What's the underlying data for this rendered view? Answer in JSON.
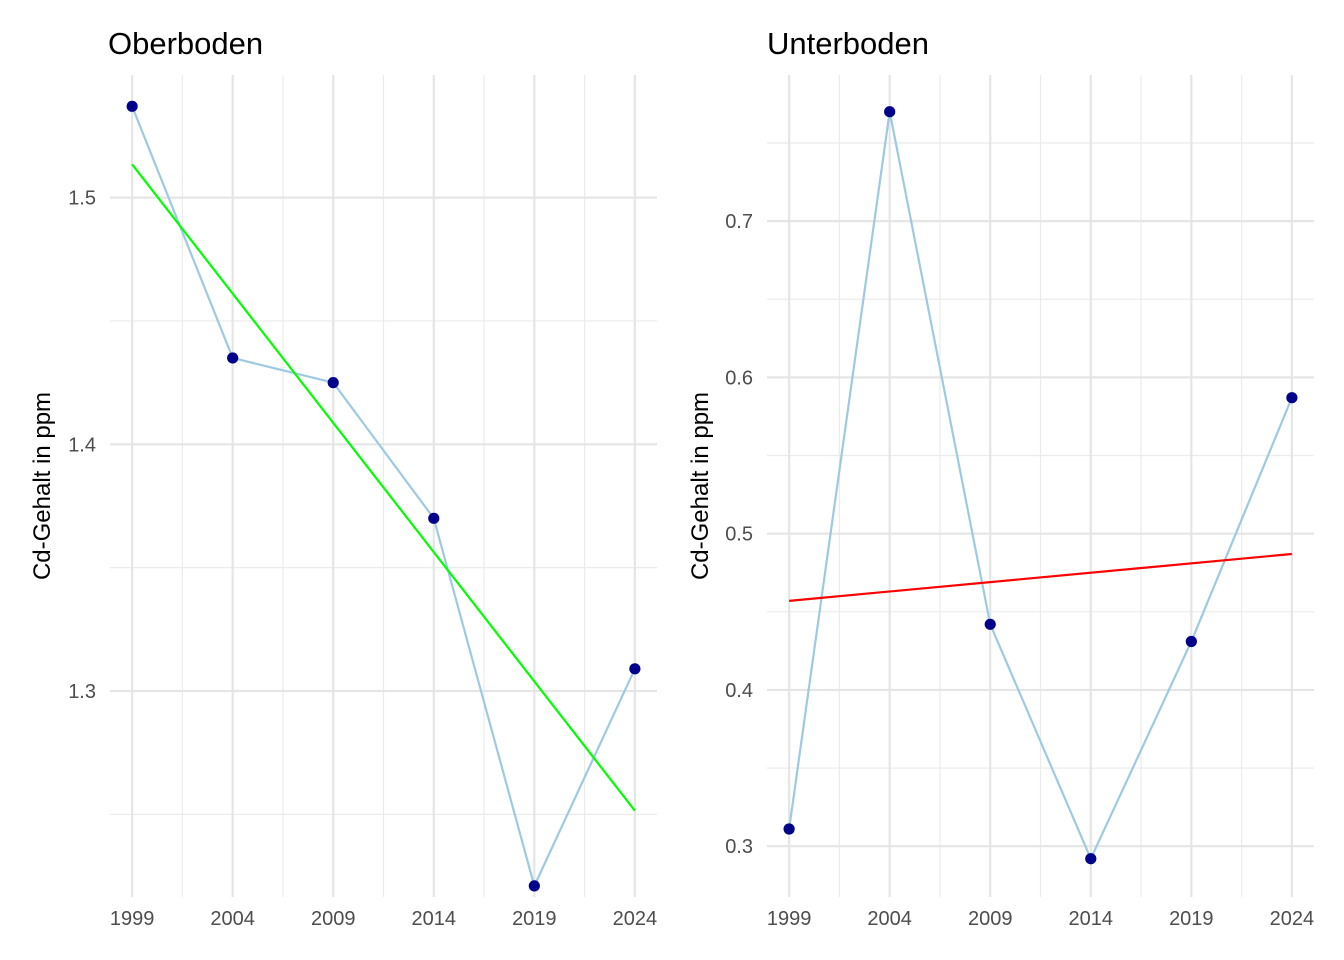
{
  "chart_data": [
    {
      "type": "line",
      "title": "Oberboden",
      "xlabel": "",
      "ylabel": "Cd-Gehalt in ppm",
      "x": [
        1999,
        2004,
        2009,
        2014,
        2019,
        2024
      ],
      "x_ticks": [
        "1999",
        "2004",
        "2009",
        "2014",
        "2019",
        "2024"
      ],
      "y_ticks": [
        1.3,
        1.4,
        1.5
      ],
      "y_tick_labels": [
        "1.3",
        "1.4",
        "1.5"
      ],
      "xlim": [
        1997.9,
        2025.1
      ],
      "ylim": [
        1.2165,
        1.5497
      ],
      "grid": true,
      "series": [
        {
          "values": [
            1.537,
            1.435,
            1.425,
            1.37,
            1.221,
            1.309
          ],
          "line_color": "#9ecae1",
          "point_color": "#00008b"
        }
      ],
      "trend": {
        "y_start": 1.5135,
        "y_end": 1.2515,
        "color": "#00ff00"
      }
    },
    {
      "type": "line",
      "title": "Unterboden",
      "xlabel": "",
      "ylabel": "Cd-Gehalt in ppm",
      "x": [
        1999,
        2004,
        2009,
        2014,
        2019,
        2024
      ],
      "x_ticks": [
        "1999",
        "2004",
        "2009",
        "2014",
        "2019",
        "2024"
      ],
      "y_ticks": [
        0.3,
        0.4,
        0.5,
        0.6,
        0.7
      ],
      "y_tick_labels": [
        "0.3",
        "0.4",
        "0.5",
        "0.6",
        "0.7"
      ],
      "xlim": [
        1997.9,
        2025.1
      ],
      "ylim": [
        0.2675,
        0.7935
      ],
      "grid": true,
      "series": [
        {
          "values": [
            0.311,
            0.77,
            0.442,
            0.292,
            0.431,
            0.587
          ],
          "line_color": "#9ecae1",
          "point_color": "#00008b"
        }
      ],
      "trend": {
        "y_start": 0.457,
        "y_end": 0.487,
        "color": "#ff0000"
      }
    }
  ]
}
